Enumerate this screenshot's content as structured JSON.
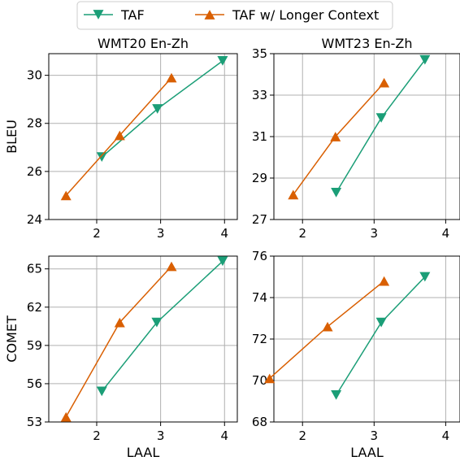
{
  "legend": {
    "entries": [
      {
        "label": "TAF",
        "color": "#1b9e77",
        "marker": "triangle-down"
      },
      {
        "label": "TAF w/ Longer Context",
        "color": "#d95f02",
        "marker": "triangle-up"
      }
    ]
  },
  "chart_data": [
    {
      "type": "line",
      "title": "WMT20 En-Zh",
      "xlabel": "",
      "ylabel": "BLEU",
      "xlim": [
        1.25,
        4.2
      ],
      "ylim": [
        24,
        30.9
      ],
      "xticks": [
        2,
        3,
        4
      ],
      "yticks": [
        24,
        26,
        28,
        30
      ],
      "grid": true,
      "series": [
        {
          "name": "TAF",
          "color": "#1b9e77",
          "marker": "triangle-down",
          "x": [
            2.08,
            2.95,
            3.97
          ],
          "y": [
            26.6,
            28.6,
            30.6
          ]
        },
        {
          "name": "TAF w/ Longer Context",
          "color": "#d95f02",
          "marker": "triangle-up",
          "x": [
            1.52,
            2.36,
            3.17
          ],
          "y": [
            25.0,
            27.5,
            29.9
          ]
        }
      ]
    },
    {
      "type": "line",
      "title": "WMT23 En-Zh",
      "xlabel": "",
      "ylabel": "",
      "xlim": [
        1.6,
        4.2
      ],
      "ylim": [
        27,
        35
      ],
      "xticks": [
        2,
        3,
        4
      ],
      "yticks": [
        27,
        29,
        31,
        33,
        35
      ],
      "grid": true,
      "series": [
        {
          "name": "TAF",
          "color": "#1b9e77",
          "marker": "triangle-down",
          "x": [
            2.47,
            3.1,
            3.71
          ],
          "y": [
            28.3,
            31.9,
            34.7
          ]
        },
        {
          "name": "TAF w/ Longer Context",
          "color": "#d95f02",
          "marker": "triangle-up",
          "x": [
            1.87,
            2.46,
            3.14
          ],
          "y": [
            28.2,
            31.0,
            33.6
          ]
        }
      ]
    },
    {
      "type": "line",
      "title": "",
      "xlabel": "LAAL",
      "ylabel": "COMET",
      "xlim": [
        1.25,
        4.2
      ],
      "ylim": [
        53,
        66
      ],
      "xticks": [
        2,
        3,
        4
      ],
      "yticks": [
        53,
        56,
        59,
        62,
        65
      ],
      "grid": true,
      "series": [
        {
          "name": "TAF",
          "color": "#1b9e77",
          "marker": "triangle-down",
          "x": [
            2.08,
            2.94,
            3.97
          ],
          "y": [
            55.4,
            60.8,
            65.6
          ]
        },
        {
          "name": "TAF w/ Longer Context",
          "color": "#d95f02",
          "marker": "triangle-up",
          "x": [
            1.52,
            2.36,
            3.17
          ],
          "y": [
            53.4,
            60.8,
            65.2
          ]
        }
      ]
    },
    {
      "type": "line",
      "title": "",
      "xlabel": "LAAL",
      "ylabel": "",
      "xlim": [
        1.6,
        4.2
      ],
      "ylim": [
        68,
        76
      ],
      "xticks": [
        2,
        3,
        4
      ],
      "yticks": [
        68,
        70,
        72,
        74,
        76
      ],
      "grid": true,
      "series": [
        {
          "name": "TAF",
          "color": "#1b9e77",
          "marker": "triangle-down",
          "x": [
            2.47,
            3.1,
            3.71
          ],
          "y": [
            69.3,
            72.8,
            75.0
          ]
        },
        {
          "name": "TAF w/ Longer Context",
          "color": "#d95f02",
          "marker": "triangle-up",
          "x": [
            1.54,
            2.35,
            3.14
          ],
          "y": [
            70.1,
            72.6,
            74.8
          ]
        }
      ]
    }
  ]
}
